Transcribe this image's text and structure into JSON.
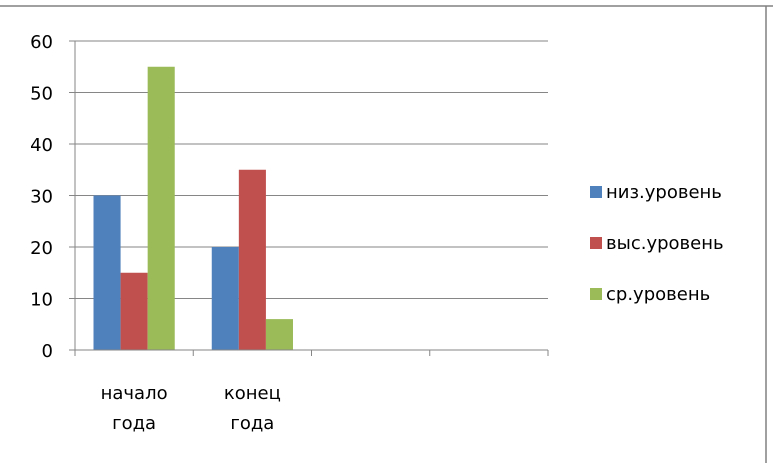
{
  "chart_data": {
    "type": "bar",
    "categories": [
      [
        "начало",
        "года"
      ],
      [
        "конец",
        "года"
      ],
      [
        ""
      ],
      [
        ""
      ]
    ],
    "series": [
      {
        "name": "низ.уровень",
        "values": [
          30,
          20,
          null,
          null
        ],
        "color": "#4F81BD"
      },
      {
        "name": "выс.уровень",
        "values": [
          15,
          35,
          null,
          null
        ],
        "color": "#C0504D"
      },
      {
        "name": "ср.уровень",
        "values": [
          55,
          6,
          null,
          null
        ],
        "color": "#9BBB59"
      }
    ],
    "yticks": [
      "0",
      "10",
      "20",
      "30",
      "40",
      "50",
      "60"
    ],
    "ylim": [
      0,
      60
    ],
    "grid": true,
    "legend_position": "right",
    "title": "",
    "xlabel": "",
    "ylabel": ""
  }
}
